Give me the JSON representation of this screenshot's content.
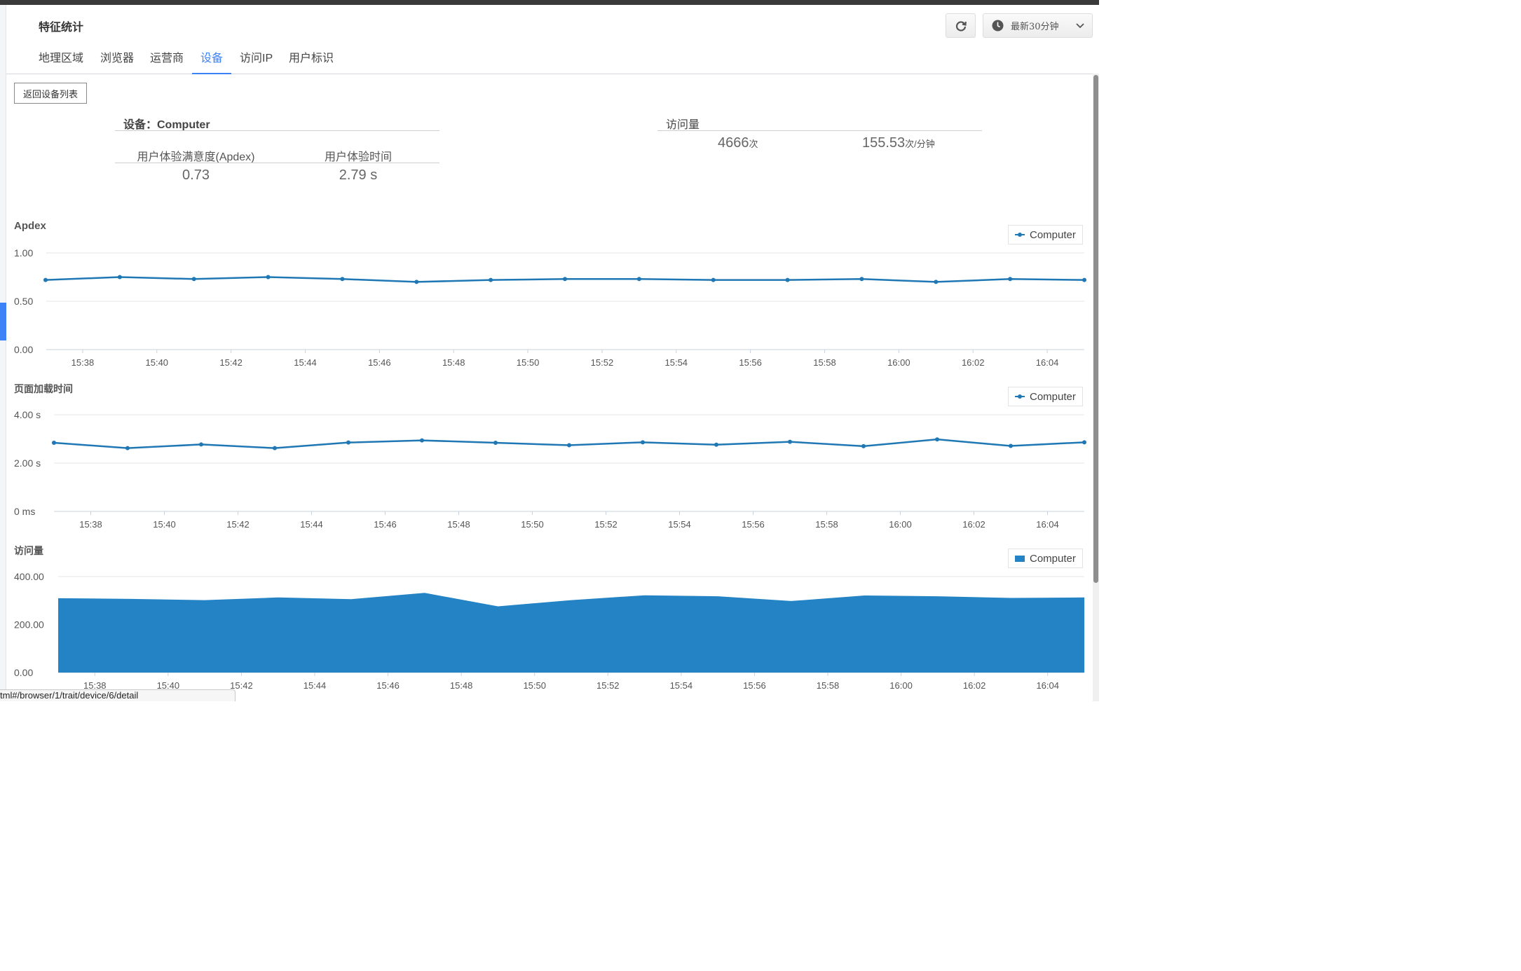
{
  "header": {
    "title": "特征统计",
    "time_range": "最新30分钟"
  },
  "tabs": [
    {
      "label": "地理区域",
      "active": false
    },
    {
      "label": "浏览器",
      "active": false
    },
    {
      "label": "运营商",
      "active": false
    },
    {
      "label": "设备",
      "active": true
    },
    {
      "label": "访问IP",
      "active": false
    },
    {
      "label": "用户标识",
      "active": false
    }
  ],
  "back_button": "返回设备列表",
  "summary": {
    "device_heading": "设备：Computer",
    "apdex_label": "用户体验满意度(Apdex)",
    "time_label": "用户体验时间",
    "apdex_value": "0.73",
    "time_value": "2.79 s",
    "visits_heading": "访问量",
    "visits_total": "4666",
    "visits_total_unit": "次",
    "visits_rate": "155.53",
    "visits_rate_unit": "次/分钟"
  },
  "legend_label": "Computer",
  "status_url": "tml#/browser/1/trait/device/6/detail",
  "colors": {
    "accent": "#3e82f7",
    "series": "#1f77b4",
    "area": "#2383c4"
  },
  "chart_data": [
    {
      "type": "line",
      "title": "Apdex",
      "x": [
        "15:37",
        "15:39",
        "15:41",
        "15:43",
        "15:45",
        "15:47",
        "15:49",
        "15:51",
        "15:53",
        "15:55",
        "15:57",
        "15:59",
        "16:01",
        "16:03",
        "16:05"
      ],
      "x_ticks": [
        "15:38",
        "15:40",
        "15:42",
        "15:44",
        "15:46",
        "15:48",
        "15:50",
        "15:52",
        "15:54",
        "15:56",
        "15:58",
        "16:00",
        "16:02",
        "16:04"
      ],
      "y_ticks": [
        "1.00",
        "0.50",
        "0.00"
      ],
      "ylim": [
        0,
        1
      ],
      "series": [
        {
          "name": "Computer",
          "values": [
            0.72,
            0.75,
            0.73,
            0.75,
            0.73,
            0.7,
            0.72,
            0.73,
            0.73,
            0.72,
            0.72,
            0.73,
            0.7,
            0.73,
            0.72
          ]
        }
      ],
      "legend": "top-right",
      "grid": true
    },
    {
      "type": "line",
      "title": "页面加载时间",
      "x": [
        "15:37",
        "15:39",
        "15:41",
        "15:43",
        "15:45",
        "15:47",
        "15:49",
        "15:51",
        "15:53",
        "15:55",
        "15:57",
        "15:59",
        "16:01",
        "16:03",
        "16:05"
      ],
      "x_ticks": [
        "15:38",
        "15:40",
        "15:42",
        "15:44",
        "15:46",
        "15:48",
        "15:50",
        "15:52",
        "15:54",
        "15:56",
        "15:58",
        "16:00",
        "16:02",
        "16:04"
      ],
      "y_ticks": [
        "4.00 s",
        "2.00 s",
        "0 ms"
      ],
      "ylim": [
        0,
        4
      ],
      "series": [
        {
          "name": "Computer",
          "values": [
            2.84,
            2.62,
            2.77,
            2.62,
            2.85,
            2.94,
            2.84,
            2.74,
            2.86,
            2.76,
            2.88,
            2.7,
            2.98,
            2.71,
            2.86
          ]
        }
      ],
      "legend": "top-right",
      "grid": true
    },
    {
      "type": "area",
      "title": "访问量",
      "x": [
        "15:37",
        "15:39",
        "15:41",
        "15:43",
        "15:45",
        "15:47",
        "15:49",
        "15:51",
        "15:53",
        "15:55",
        "15:57",
        "15:59",
        "16:01",
        "16:03",
        "16:05"
      ],
      "x_ticks": [
        "15:38",
        "15:40",
        "15:42",
        "15:44",
        "15:46",
        "15:48",
        "15:50",
        "15:52",
        "15:54",
        "15:56",
        "15:58",
        "16:00",
        "16:02",
        "16:04"
      ],
      "y_ticks": [
        "400.00",
        "200.00",
        "0.00"
      ],
      "ylim": [
        0,
        400
      ],
      "series": [
        {
          "name": "Computer",
          "values": [
            310,
            307,
            302,
            313,
            306,
            332,
            276,
            302,
            322,
            318,
            298,
            321,
            318,
            311,
            313
          ]
        }
      ],
      "legend": "top-right",
      "grid": true
    }
  ]
}
